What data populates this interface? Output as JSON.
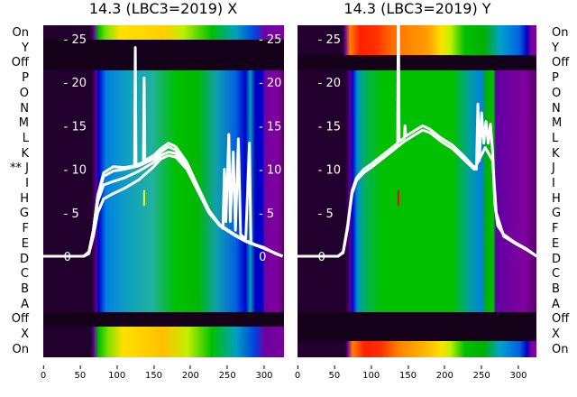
{
  "chart_data": [
    {
      "type": "heatmap",
      "title": "14.3 (LBC3=2019) X",
      "row_labels": [
        "On",
        "Y",
        "Off",
        "P",
        "O",
        "N",
        "M",
        "L",
        "K",
        "J",
        "I",
        "H",
        "G",
        "F",
        "E",
        "D",
        "C",
        "B",
        "A",
        "Off",
        "X",
        "On"
      ],
      "marked_row": {
        "label": "J",
        "marker": "**"
      },
      "xticks": [
        0,
        50,
        100,
        150,
        200,
        250,
        300
      ],
      "yticks": [
        0,
        5,
        10,
        15,
        20,
        25
      ],
      "xlim": [
        0,
        325
      ],
      "ylim": [
        -7.5,
        30.5
      ],
      "series": [
        {
          "name": "line1",
          "points": [
            [
              0,
              0
            ],
            [
              55,
              0
            ],
            [
              62,
              0.5
            ],
            [
              68,
              3
            ],
            [
              74,
              7
            ],
            [
              82,
              9.6
            ],
            [
              95,
              10.3
            ],
            [
              110,
              10.2
            ],
            [
              124,
              10.4
            ],
            [
              125,
              24
            ],
            [
              126,
              10.5
            ],
            [
              136,
              10.8
            ],
            [
              137,
              20.5
            ],
            [
              138,
              11
            ],
            [
              150,
              11.6
            ],
            [
              160,
              12.4
            ],
            [
              170,
              13
            ],
            [
              180,
              12.6
            ],
            [
              195,
              10.8
            ],
            [
              210,
              8
            ],
            [
              225,
              5.3
            ],
            [
              238,
              3.8
            ],
            [
              244,
              3.2
            ],
            [
              246,
              10
            ],
            [
              248,
              4
            ],
            [
              252,
              14
            ],
            [
              254,
              4
            ],
            [
              258,
              12
            ],
            [
              261,
              3
            ],
            [
              265,
              13.5
            ],
            [
              268,
              2.5
            ],
            [
              275,
              2
            ],
            [
              280,
              13
            ],
            [
              282,
              1.5
            ],
            [
              300,
              1
            ],
            [
              315,
              0.3
            ],
            [
              325,
              0
            ]
          ]
        },
        {
          "name": "line2",
          "points": [
            [
              0,
              0
            ],
            [
              55,
              0
            ],
            [
              62,
              0.5
            ],
            [
              68,
              3
            ],
            [
              74,
              6.8
            ],
            [
              82,
              9.2
            ],
            [
              95,
              9.8
            ],
            [
              110,
              10
            ],
            [
              130,
              10.4
            ],
            [
              150,
              11.2
            ],
            [
              160,
              12
            ],
            [
              170,
              12.6
            ],
            [
              180,
              12.2
            ],
            [
              195,
              10.5
            ],
            [
              210,
              7.8
            ],
            [
              225,
              5.2
            ],
            [
              240,
              3.6
            ],
            [
              260,
              2.5
            ],
            [
              275,
              1.8
            ],
            [
              300,
              0.9
            ],
            [
              325,
              0
            ]
          ]
        },
        {
          "name": "line3",
          "points": [
            [
              0,
              0
            ],
            [
              55,
              0
            ],
            [
              62,
              0.4
            ],
            [
              68,
              2.8
            ],
            [
              74,
              6.3
            ],
            [
              82,
              8.2
            ],
            [
              95,
              8.6
            ],
            [
              110,
              9
            ],
            [
              130,
              9.8
            ],
            [
              150,
              10.8
            ],
            [
              160,
              11.6
            ],
            [
              170,
              12
            ],
            [
              180,
              11.8
            ],
            [
              195,
              10.2
            ],
            [
              210,
              7.6
            ],
            [
              225,
              5
            ],
            [
              240,
              3.5
            ],
            [
              260,
              2.4
            ],
            [
              275,
              1.7
            ],
            [
              300,
              0.9
            ],
            [
              325,
              0
            ]
          ]
        },
        {
          "name": "line4",
          "points": [
            [
              0,
              0
            ],
            [
              55,
              0
            ],
            [
              62,
              0.3
            ],
            [
              68,
              2.3
            ],
            [
              74,
              5
            ],
            [
              82,
              6.6
            ],
            [
              95,
              7.2
            ],
            [
              110,
              7.8
            ],
            [
              130,
              8.8
            ],
            [
              150,
              10.3
            ],
            [
              160,
              11.2
            ],
            [
              170,
              11.6
            ],
            [
              180,
              11.4
            ],
            [
              195,
              10
            ],
            [
              210,
              7.5
            ],
            [
              225,
              5
            ],
            [
              240,
              3.5
            ],
            [
              260,
              2.4
            ],
            [
              275,
              1.7
            ],
            [
              300,
              0.9
            ],
            [
              325,
              0
            ]
          ]
        }
      ],
      "marker_color": "#ffff00"
    },
    {
      "type": "heatmap",
      "title": "14.3 (LBC3=2019) Y",
      "row_labels": [
        "On",
        "Y",
        "Off",
        "P",
        "O",
        "N",
        "M",
        "L",
        "K",
        "J",
        "I",
        "H",
        "G",
        "F",
        "E",
        "D",
        "C",
        "B",
        "A",
        "Off",
        "X",
        "On"
      ],
      "xticks": [
        0,
        50,
        100,
        150,
        200,
        250,
        300
      ],
      "yticks": [
        0,
        5,
        10,
        15,
        20,
        25
      ],
      "xlim": [
        0,
        325
      ],
      "ylim": [
        -7.5,
        30.5
      ],
      "series": [
        {
          "name": "line1",
          "points": [
            [
              0,
              0
            ],
            [
              55,
              0
            ],
            [
              62,
              0.5
            ],
            [
              68,
              3.5
            ],
            [
              74,
              7.5
            ],
            [
              80,
              9
            ],
            [
              90,
              10
            ],
            [
              100,
              10.6
            ],
            [
              115,
              11.6
            ],
            [
              130,
              12.6
            ],
            [
              136,
              13
            ],
            [
              137,
              31
            ],
            [
              138,
              13.2
            ],
            [
              145,
              13.6
            ],
            [
              146,
              15
            ],
            [
              147,
              13.8
            ],
            [
              160,
              14.5
            ],
            [
              170,
              15
            ],
            [
              180,
              14.6
            ],
            [
              195,
              13.6
            ],
            [
              210,
              12.8
            ],
            [
              225,
              11.6
            ],
            [
              238,
              10.4
            ],
            [
              243,
              10
            ],
            [
              245,
              17.5
            ],
            [
              247,
              11
            ],
            [
              250,
              16.5
            ],
            [
              253,
              13
            ],
            [
              256,
              15.5
            ],
            [
              259,
              13
            ],
            [
              262,
              15.2
            ],
            [
              265,
              12
            ],
            [
              268,
              6
            ],
            [
              272,
              3.5
            ],
            [
              280,
              2.5
            ],
            [
              295,
              1.6
            ],
            [
              310,
              0.9
            ],
            [
              325,
              0
            ]
          ]
        },
        {
          "name": "line2",
          "points": [
            [
              0,
              0
            ],
            [
              55,
              0
            ],
            [
              62,
              0.4
            ],
            [
              68,
              3.2
            ],
            [
              74,
              7.2
            ],
            [
              80,
              8.7
            ],
            [
              90,
              9.6
            ],
            [
              100,
              10.2
            ],
            [
              115,
              11.2
            ],
            [
              130,
              12.2
            ],
            [
              145,
              13.2
            ],
            [
              160,
              14
            ],
            [
              170,
              14.5
            ],
            [
              180,
              14.2
            ],
            [
              195,
              13.2
            ],
            [
              210,
              12.4
            ],
            [
              225,
              11.2
            ],
            [
              240,
              10
            ],
            [
              255,
              12.5
            ],
            [
              265,
              11
            ],
            [
              270,
              5
            ],
            [
              280,
              2.3
            ],
            [
              295,
              1.5
            ],
            [
              310,
              0.8
            ],
            [
              325,
              0
            ]
          ]
        }
      ],
      "marker_color": "#ff0000"
    }
  ]
}
